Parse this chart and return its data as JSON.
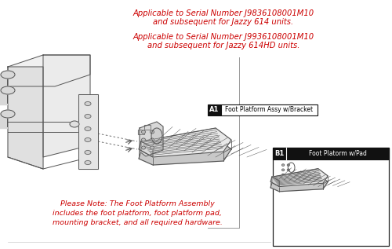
{
  "bg_color": "#ffffff",
  "red_color": "#cc0000",
  "black_color": "#000000",
  "line_color": "#555555",
  "dark_label": "#111111",
  "text1_line1": "Applicable to Serial Number J9836108001M10",
  "text1_line2": "and subsequent for Jazzy 614 units.",
  "text2_line1": "Applicable to Serial Number J9936108001M10",
  "text2_line2": "and subsequent for Jazzy 614HD units.",
  "note_line1": "Please Note: The Foot Platform Assembly",
  "note_line2": "includes the foot platform, foot platform pad,",
  "note_line3": "mounting bracket, and all required hardware.",
  "label_a1": "A1",
  "label_a1_text": "Foot Platform Assy w/Bracket",
  "label_b1": "B1",
  "label_b1_text": "Foot Platorm w/Pad",
  "figsize": [
    5.0,
    3.17
  ],
  "dpi": 100
}
